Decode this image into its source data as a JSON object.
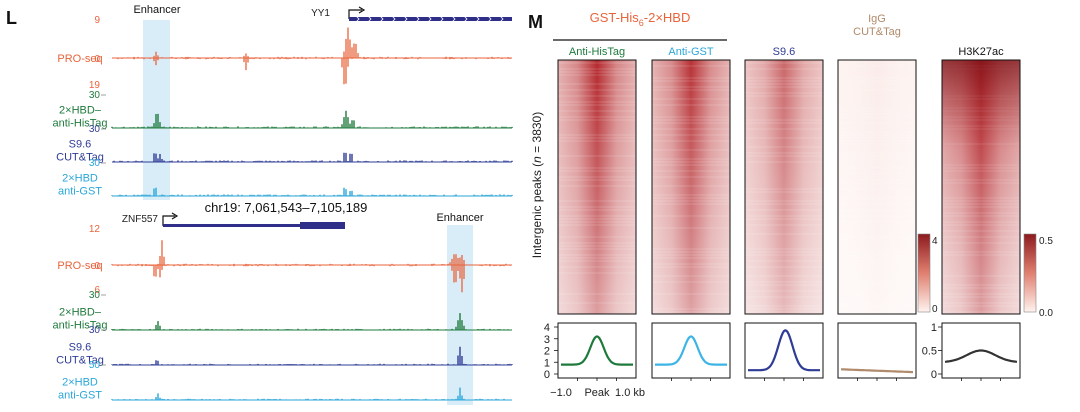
{
  "panel_l": {
    "letter": "L",
    "top": {
      "enhancer_label": "Enhancer",
      "gene_label": "YY1",
      "tracks": [
        {
          "label_lines": [
            "PRO-seq"
          ],
          "color": "#e8643c",
          "scale_max": "9",
          "scale_zero": "0",
          "scale_min": "19"
        },
        {
          "label_lines": [
            "2×HBD–",
            "anti-HisTag"
          ],
          "color": "#1e7a3c",
          "scale_max": "30"
        },
        {
          "label_lines": [
            "S9.6",
            "CUT&Tag"
          ],
          "color": "#2f3c96",
          "scale_max": "30"
        },
        {
          "label_lines": [
            "2×HBD",
            "anti-GST"
          ],
          "color": "#2aa6d9",
          "scale_max": "30"
        }
      ]
    },
    "coordinates": "chr19: 7,061,543–7,105,189",
    "bottom": {
      "gene_label": "ZNF557",
      "enhancer_label": "Enhancer",
      "tracks": [
        {
          "label_lines": [
            "PRO-seq"
          ],
          "color": "#e8643c",
          "scale_max": "12",
          "scale_zero": "0",
          "scale_min": "6"
        },
        {
          "label_lines": [
            "2×HBD–",
            "anti-HisTag"
          ],
          "color": "#1e7a3c",
          "scale_max": "30"
        },
        {
          "label_lines": [
            "S9.6",
            "CUT&Tag"
          ],
          "color": "#2f3c96",
          "scale_max": "30"
        },
        {
          "label_lines": [
            "2×HBD",
            "anti-GST"
          ],
          "color": "#2aa6d9",
          "scale_max": "50"
        }
      ]
    }
  },
  "panel_m": {
    "letter": "M",
    "group_label_prefix": "GST-His",
    "group_label_sub": "6",
    "group_label_suffix": "-2×HBD",
    "y_label_prefix": "Intergenic peaks (",
    "y_label_n": "n",
    "y_label_suffix": " = 3830)",
    "heatmaps": [
      {
        "title": "Anti-HisTag",
        "title_color": "#1e7a3c",
        "intensity": 1.0,
        "profile_color": "#1e7a3c"
      },
      {
        "title": "Anti-GST",
        "title_color": "#2aa6d9",
        "intensity": 0.95,
        "profile_color": "#3cb4e6"
      },
      {
        "title": "S9.6",
        "title_color": "#2f3c96",
        "intensity": 0.7,
        "profile_color": "#2f3c96"
      },
      {
        "title_lines": [
          "IgG",
          "CUT&Tag"
        ],
        "title_color": "#b08a6a",
        "intensity": 0.06,
        "profile_color": "#b08a6a"
      },
      {
        "title": "H3K27ac",
        "title_color": "#111111",
        "intensity": 1.0,
        "profile_color": "#333333"
      }
    ],
    "colorbar_left": {
      "max": "4",
      "min": "0"
    },
    "colorbar_right": {
      "max": "0.5",
      "min": "0.0"
    },
    "profile_y_left": [
      "4",
      "3",
      "2",
      "1",
      "0"
    ],
    "profile_y_right": [
      "1",
      "0.5",
      "0"
    ],
    "profile_x_labels": [
      "−1.0",
      "Peak",
      "1.0 kb"
    ],
    "heat_color": "#b4282d"
  }
}
